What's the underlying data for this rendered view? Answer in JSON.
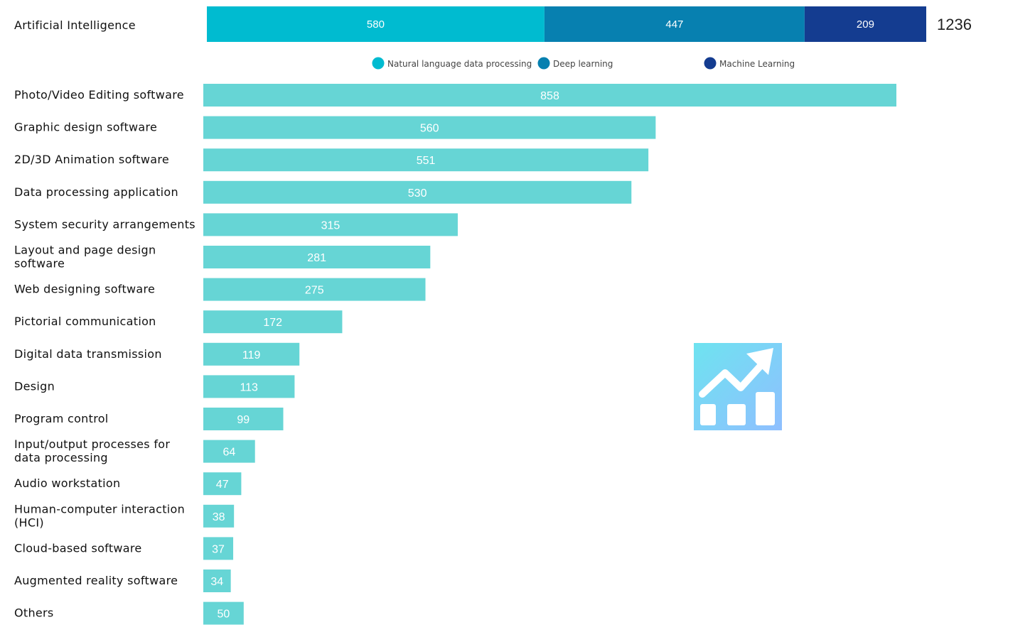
{
  "chart_data": [
    {
      "type": "bar",
      "orientation": "horizontal",
      "stacked": true,
      "categories": [
        "Artificial Intelligence"
      ],
      "series": [
        {
          "name": "Natural language data processing",
          "values": [
            580
          ],
          "color": "#00BBD0"
        },
        {
          "name": "Deep learning",
          "values": [
            447
          ],
          "color": "#0780B0"
        },
        {
          "name": "Machine Learning",
          "values": [
            209
          ],
          "color": "#143C90"
        }
      ],
      "total": 1236,
      "legend": "bottom"
    },
    {
      "type": "bar",
      "orientation": "horizontal",
      "categories": [
        "Photo/Video Editing software",
        "Graphic design software",
        "2D/3D Animation software",
        "Data processing application",
        "System security arrangements",
        "Layout and page design software",
        "Web designing software",
        "Pictorial communication",
        "Digital data transmission",
        "Design",
        "Program control",
        "Input/output processes for data processing",
        "Audio workstation",
        "Human-computer interaction (HCI)",
        "Cloud-based software",
        "Augmented reality software",
        "Others"
      ],
      "label_lines": [
        [
          "Photo/Video Editing software"
        ],
        [
          "Graphic design software"
        ],
        [
          "2D/3D Animation software"
        ],
        [
          "Data processing application"
        ],
        [
          "System security arrangements"
        ],
        [
          "Layout and page design",
          "software"
        ],
        [
          "Web designing software"
        ],
        [
          "Pictorial communication"
        ],
        [
          "Digital data transmission"
        ],
        [
          "Design"
        ],
        [
          "Program control"
        ],
        [
          "Input/output processes for",
          "data processing"
        ],
        [
          "Audio workstation"
        ],
        [
          "Human-computer interaction",
          "(HCI)"
        ],
        [
          "Cloud-based software"
        ],
        [
          "Augmented reality software"
        ],
        [
          "Others"
        ]
      ],
      "values": [
        858,
        560,
        551,
        530,
        315,
        281,
        275,
        172,
        119,
        113,
        99,
        64,
        47,
        38,
        37,
        34,
        50
      ],
      "color": "#66D5D5",
      "grid": false
    }
  ],
  "icon": {
    "name": "trending-up-chart-icon",
    "gradient": [
      "#6EE3F0",
      "#8FBFFF"
    ]
  }
}
